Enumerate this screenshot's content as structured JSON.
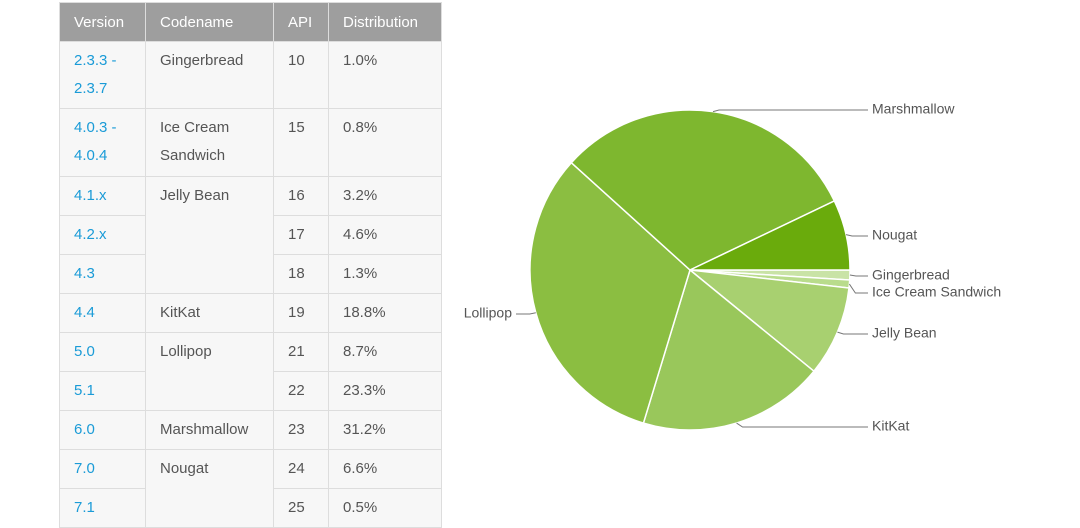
{
  "table": {
    "headers": [
      "Version",
      "Codename",
      "API",
      "Distribution"
    ],
    "rows": [
      {
        "version": "2.3.3 - 2.3.7",
        "codename": "Gingerbread",
        "api": "10",
        "distribution": "1.0%"
      },
      {
        "version": "4.0.3 - 4.0.4",
        "codename": "Ice Cream Sandwich",
        "api": "15",
        "distribution": "0.8%"
      },
      {
        "version": "4.1.x",
        "codename": "Jelly Bean",
        "api": "16",
        "distribution": "3.2%"
      },
      {
        "version": "4.2.x",
        "api": "17",
        "distribution": "4.6%"
      },
      {
        "version": "4.3",
        "api": "18",
        "distribution": "1.3%"
      },
      {
        "version": "4.4",
        "codename": "KitKat",
        "api": "19",
        "distribution": "18.8%"
      },
      {
        "version": "5.0",
        "codename": "Lollipop",
        "api": "21",
        "distribution": "8.7%"
      },
      {
        "version": "5.1",
        "api": "22",
        "distribution": "23.3%"
      },
      {
        "version": "6.0",
        "codename": "Marshmallow",
        "api": "23",
        "distribution": "31.2%"
      },
      {
        "version": "7.0",
        "codename": "Nougat",
        "api": "24",
        "distribution": "6.6%"
      },
      {
        "version": "7.1",
        "api": "25",
        "distribution": "0.5%"
      }
    ]
  },
  "chart_data": {
    "type": "pie",
    "categories": [
      "Gingerbread",
      "Ice Cream Sandwich",
      "Jelly Bean",
      "KitKat",
      "Lollipop",
      "Marshmallow",
      "Nougat"
    ],
    "values": [
      1.0,
      0.8,
      9.1,
      18.8,
      32.0,
      31.2,
      7.1
    ],
    "colors": [
      "#c9e3a6",
      "#b9dc8c",
      "#a8d070",
      "#99c75b",
      "#8bbe41",
      "#7eb72f",
      "#6aab0c"
    ]
  }
}
